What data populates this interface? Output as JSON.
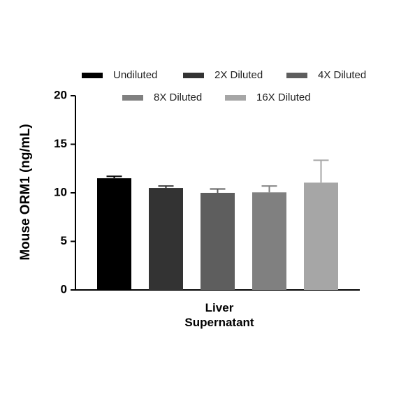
{
  "chart_data": {
    "type": "bar",
    "y_label": "Mouse ORM1 (ng/mL)",
    "categories": [
      "Liver\nSupernatant"
    ],
    "series": [
      {
        "name": "Undiluted",
        "color": "#000000",
        "values": [
          11.5
        ],
        "errors": [
          0.2
        ]
      },
      {
        "name": "2X Diluted",
        "color": "#333333",
        "values": [
          10.5
        ],
        "errors": [
          0.2
        ]
      },
      {
        "name": "4X Diluted",
        "color": "#5e5e5e",
        "values": [
          10.0
        ],
        "errors": [
          0.4
        ]
      },
      {
        "name": "8X Diluted",
        "color": "#808080",
        "values": [
          10.05
        ],
        "errors": [
          0.65
        ]
      },
      {
        "name": "16X Diluted",
        "color": "#a6a6a6",
        "values": [
          11.05
        ],
        "errors": [
          2.3
        ]
      }
    ],
    "ylim": [
      0,
      20
    ],
    "yticks": [
      0,
      5,
      10,
      15,
      20
    ],
    "grid": false,
    "error_bars": "upper"
  }
}
